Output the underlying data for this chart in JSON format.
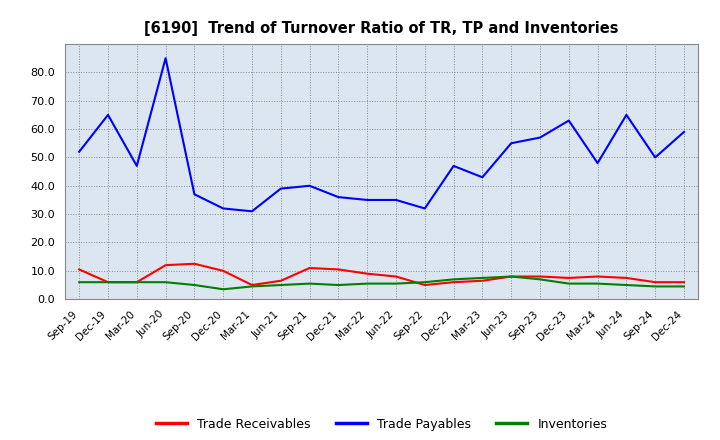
{
  "title": "[6190]  Trend of Turnover Ratio of TR, TP and Inventories",
  "x_labels": [
    "Sep-19",
    "Dec-19",
    "Mar-20",
    "Jun-20",
    "Sep-20",
    "Dec-20",
    "Mar-21",
    "Jun-21",
    "Sep-21",
    "Dec-21",
    "Mar-22",
    "Jun-22",
    "Sep-22",
    "Dec-22",
    "Mar-23",
    "Jun-23",
    "Sep-23",
    "Dec-23",
    "Mar-24",
    "Jun-24",
    "Sep-24",
    "Dec-24"
  ],
  "trade_receivables": [
    10.5,
    6.0,
    6.0,
    12.0,
    12.5,
    10.0,
    5.0,
    6.5,
    11.0,
    10.5,
    9.0,
    8.0,
    5.0,
    6.0,
    6.5,
    8.0,
    8.0,
    7.5,
    8.0,
    7.5,
    6.0,
    6.0
  ],
  "trade_payables": [
    52.0,
    65.0,
    47.0,
    85.0,
    37.0,
    32.0,
    31.0,
    39.0,
    40.0,
    36.0,
    35.0,
    35.0,
    32.0,
    47.0,
    43.0,
    55.0,
    57.0,
    63.0,
    48.0,
    65.0,
    50.0,
    59.0
  ],
  "inventories": [
    6.0,
    6.0,
    6.0,
    6.0,
    5.0,
    3.5,
    4.5,
    5.0,
    5.5,
    5.0,
    5.5,
    5.5,
    6.0,
    7.0,
    7.5,
    8.0,
    7.0,
    5.5,
    5.5,
    5.0,
    4.5,
    4.5
  ],
  "ylim": [
    0.0,
    90.0
  ],
  "yticks": [
    0.0,
    10.0,
    20.0,
    30.0,
    40.0,
    50.0,
    60.0,
    70.0,
    80.0
  ],
  "tr_color": "#ff0000",
  "tp_color": "#0000ff",
  "inv_color": "#008000",
  "legend_labels": [
    "Trade Receivables",
    "Trade Payables",
    "Inventories"
  ],
  "background_color": "#ffffff",
  "plot_bg_color": "#dce6f0"
}
